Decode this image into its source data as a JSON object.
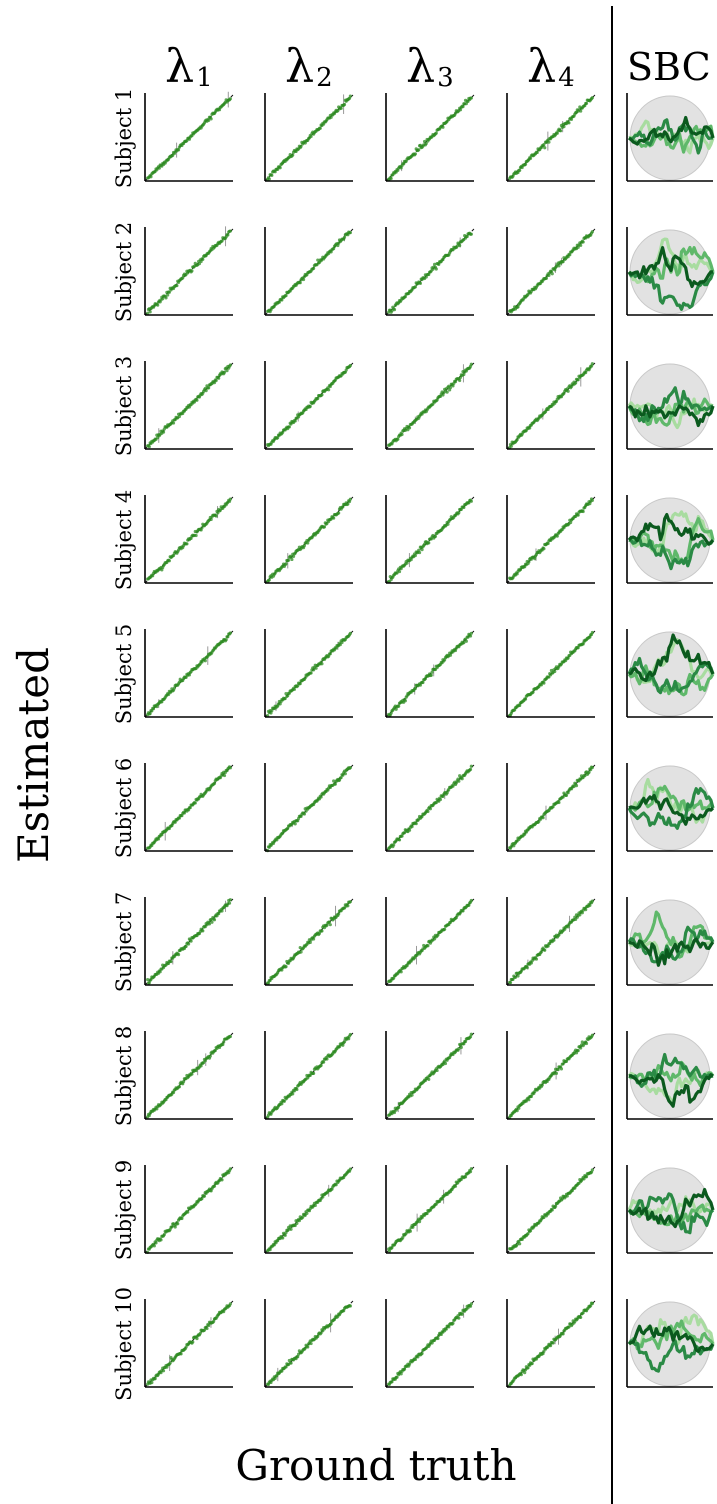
{
  "figure": {
    "x_axis_title": "Ground truth",
    "y_axis_title": "Estimated"
  },
  "columns": [
    {
      "symbol": "λ",
      "subscript": "1"
    },
    {
      "symbol": "λ",
      "subscript": "2"
    },
    {
      "symbol": "λ",
      "subscript": "3"
    },
    {
      "symbol": "λ",
      "subscript": "4"
    }
  ],
  "sbc_header": "SBC",
  "rows": [
    "Subject 1",
    "Subject 2",
    "Subject 3",
    "Subject 4",
    "Subject 5",
    "Subject 6",
    "Subject 7",
    "Subject 8",
    "Subject 9",
    "Subject 10"
  ],
  "colors": {
    "points": "#2e8b22",
    "diagonal": "#111111",
    "errorbar": "#9a9a9a",
    "sbc_band": "#e2e2e2",
    "sbc_band_edge": "#c8c8c8",
    "sbc_lines": [
      "#a8dca0",
      "#5fb86a",
      "#2a8a45",
      "#0b5a1e"
    ]
  },
  "chart_data": {
    "type": "scatter",
    "description_free": true,
    "panel_grid": {
      "rows": 10,
      "cols": 4
    },
    "xlim": [
      0,
      1
    ],
    "ylim": [
      0,
      1
    ],
    "points_per_panel": 100,
    "reference_line": "y = x",
    "estimation_noise_sd": 0.012,
    "sbc": {
      "type": "line",
      "series_count": 4,
      "band_shape": "ellipse"
    }
  }
}
